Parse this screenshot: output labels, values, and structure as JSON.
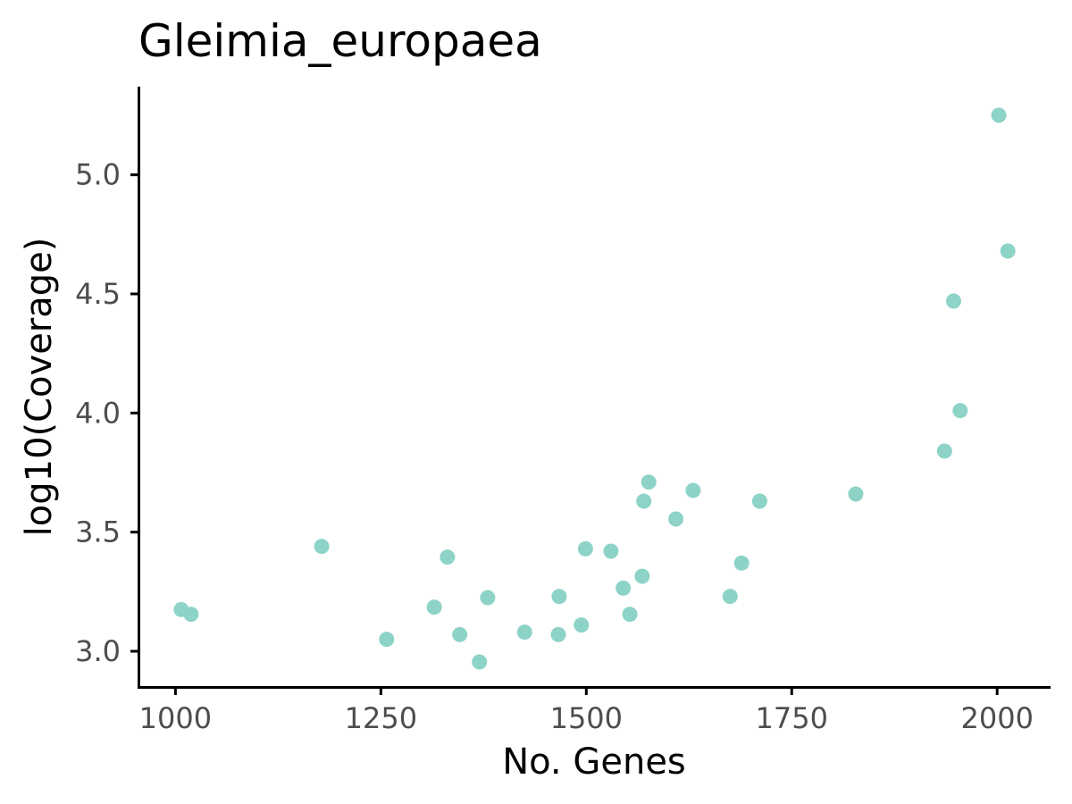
{
  "chart_data": {
    "type": "scatter",
    "title": "Gleimia_europaea",
    "xlabel": "No. Genes",
    "ylabel": "log10(Coverage)",
    "xlim": [
      955,
      2065
    ],
    "ylim": [
      2.85,
      5.37
    ],
    "x_ticks": [
      1000,
      1250,
      1500,
      1750,
      2000
    ],
    "x_tick_labels": [
      "1000",
      "1250",
      "1500",
      "1750",
      "2000"
    ],
    "y_ticks": [
      3.0,
      3.5,
      4.0,
      4.5,
      5.0
    ],
    "y_tick_labels": [
      "3.0",
      "3.5",
      "4.0",
      "4.5",
      "5.0"
    ],
    "grid": false,
    "legend": "none",
    "point_color": "#8dd3c7",
    "series": [
      {
        "points": [
          {
            "x": 1007,
            "y": 3.175
          },
          {
            "x": 1019,
            "y": 3.155
          },
          {
            "x": 1178,
            "y": 3.44
          },
          {
            "x": 1257,
            "y": 3.05
          },
          {
            "x": 1315,
            "y": 3.185
          },
          {
            "x": 1331,
            "y": 3.395
          },
          {
            "x": 1346,
            "y": 3.07
          },
          {
            "x": 1370,
            "y": 2.955
          },
          {
            "x": 1380,
            "y": 3.225
          },
          {
            "x": 1425,
            "y": 3.08
          },
          {
            "x": 1466,
            "y": 3.07
          },
          {
            "x": 1467,
            "y": 3.23
          },
          {
            "x": 1494,
            "y": 3.11
          },
          {
            "x": 1499,
            "y": 3.43
          },
          {
            "x": 1530,
            "y": 3.42
          },
          {
            "x": 1545,
            "y": 3.265
          },
          {
            "x": 1553,
            "y": 3.155
          },
          {
            "x": 1568,
            "y": 3.315
          },
          {
            "x": 1570,
            "y": 3.63
          },
          {
            "x": 1576,
            "y": 3.71
          },
          {
            "x": 1609,
            "y": 3.555
          },
          {
            "x": 1630,
            "y": 3.675
          },
          {
            "x": 1675,
            "y": 3.23
          },
          {
            "x": 1689,
            "y": 3.37
          },
          {
            "x": 1711,
            "y": 3.63
          },
          {
            "x": 1828,
            "y": 3.66
          },
          {
            "x": 1936,
            "y": 3.84
          },
          {
            "x": 1947,
            "y": 4.47
          },
          {
            "x": 1955,
            "y": 4.01
          },
          {
            "x": 2002,
            "y": 5.25
          },
          {
            "x": 2013,
            "y": 4.68
          }
        ]
      }
    ]
  }
}
